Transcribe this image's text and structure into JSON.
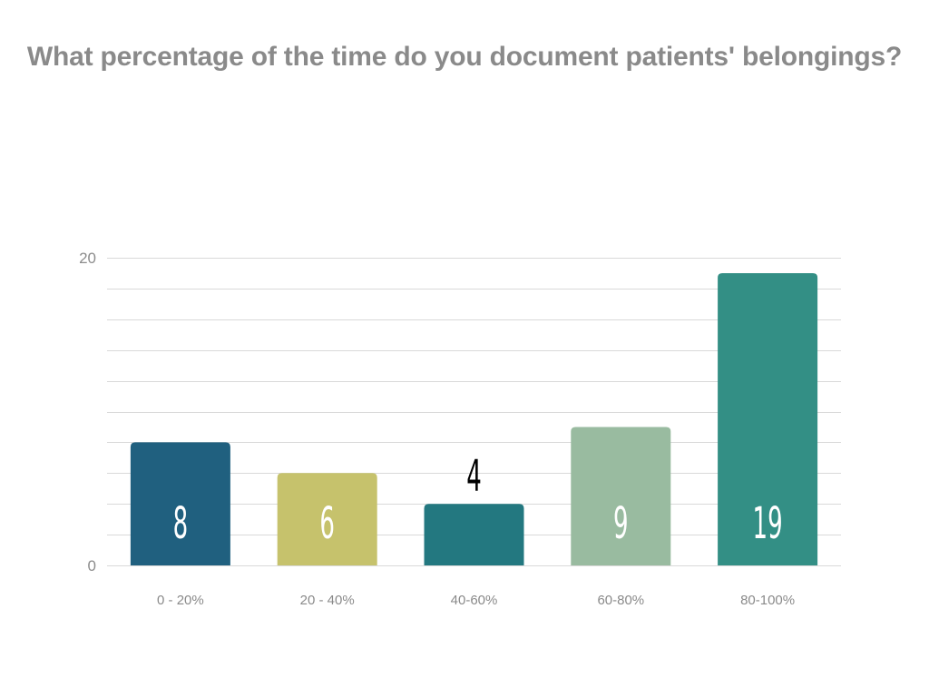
{
  "chart_data": {
    "type": "bar",
    "title": "What percentage of the time do you document patients' belongings?",
    "categories": [
      "0 - 20%",
      "20 - 40%",
      "40-60%",
      "60-80%",
      "80-100%"
    ],
    "values": [
      8,
      6,
      4,
      9,
      19
    ],
    "series": [
      {
        "values": [
          8,
          6,
          4,
          9,
          19
        ],
        "colors": [
          "#20607f",
          "#c6c26c",
          "#237880",
          "#99bba0",
          "#338f85"
        ]
      }
    ],
    "ylim": [
      0,
      20
    ],
    "yticks": [
      0,
      20
    ],
    "grid_step": 2,
    "grid": true,
    "data_label_colors": [
      "#ffffff",
      "#ffffff",
      "#000000",
      "#ffffff",
      "#ffffff"
    ],
    "data_label_positions": [
      "inside",
      "inside",
      "above",
      "inside",
      "inside"
    ],
    "xlabel": "",
    "ylabel": "",
    "legend": "none"
  }
}
